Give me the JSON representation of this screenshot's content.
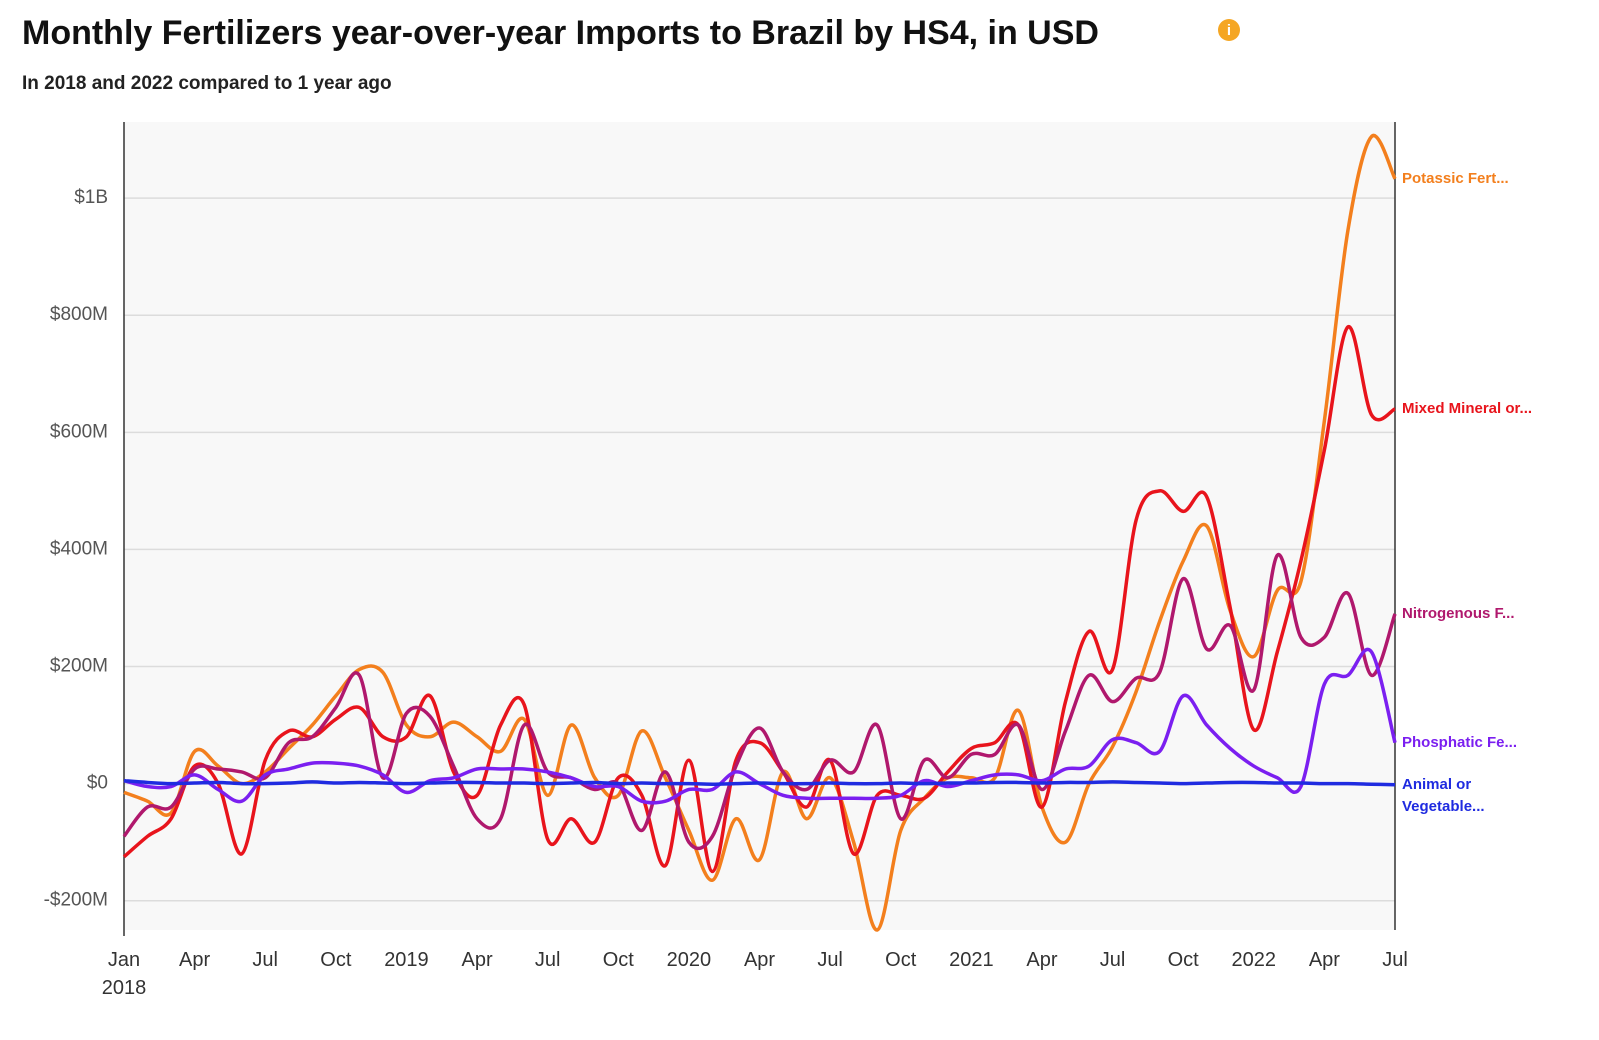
{
  "chart_data": {
    "type": "line",
    "title": "Monthly Fertilizers year-over-year Imports to Brazil by HS4, in USD",
    "subtitle": "In 2018 and 2022 compared to 1 year ago",
    "categories": [
      "Jan 2018",
      null,
      null,
      "Apr",
      null,
      null,
      "Jul",
      null,
      null,
      "Oct",
      null,
      null,
      "2019",
      null,
      null,
      "Apr",
      null,
      null,
      "Jul",
      null,
      null,
      "Oct",
      null,
      null,
      "2020",
      null,
      null,
      "Apr",
      null,
      null,
      "Jul",
      null,
      null,
      "Oct",
      null,
      null,
      "2021",
      null,
      null,
      "Apr",
      null,
      null,
      "Jul",
      null,
      null,
      "Oct",
      null,
      null,
      "2022",
      null,
      null,
      "Apr",
      null,
      null,
      "Jul"
    ],
    "ylim": [
      -250000000.0,
      1130000000.0
    ],
    "yticks": [
      {
        "value": -200000000.0,
        "label": "-$200M"
      },
      {
        "value": 0,
        "label": "$0"
      },
      {
        "value": 200000000.0,
        "label": "$200M"
      },
      {
        "value": 400000000.0,
        "label": "$400M"
      },
      {
        "value": 600000000.0,
        "label": "$600M"
      },
      {
        "value": 800000000.0,
        "label": "$800M"
      },
      {
        "value": 1000000000.0,
        "label": "$1B"
      }
    ],
    "grid": true,
    "series": [
      {
        "name": "Potassic Fert...",
        "color": "#f37f1d",
        "values": [
          -15000000.0,
          -30000000.0,
          -50000000.0,
          55000000.0,
          30000000.0,
          0,
          20000000.0,
          60000000.0,
          100000000.0,
          150000000.0,
          195000000.0,
          190000000.0,
          100000000.0,
          80000000.0,
          105000000.0,
          80000000.0,
          55000000.0,
          110000000.0,
          -20000000.0,
          100000000.0,
          10000000.0,
          -20000000.0,
          90000000.0,
          10000000.0,
          -80000000.0,
          -165000000.0,
          -60000000.0,
          -130000000.0,
          20000000.0,
          -60000000.0,
          10000000.0,
          -100000000.0,
          -250000000.0,
          -80000000.0,
          -25000000.0,
          10000000.0,
          10000000.0,
          10000000.0,
          125000000.0,
          -40000000.0,
          -100000000.0,
          0,
          63000000.0,
          157000000.0,
          277000000.0,
          380000000.0,
          440000000.0,
          295000000.0,
          217000000.0,
          330000000.0,
          345000000.0,
          620000000.0,
          945000000.0,
          1105000000.0,
          1033000000.0
        ]
      },
      {
        "name": "Mixed Mineral or...",
        "color": "#e8141c",
        "values": [
          -125000000.0,
          -90000000.0,
          -60000000.0,
          30000000.0,
          0,
          -120000000.0,
          40000000.0,
          90000000.0,
          80000000.0,
          110000000.0,
          130000000.0,
          80000000.0,
          80000000.0,
          150000000.0,
          20000000.0,
          -20000000.0,
          100000000.0,
          135000000.0,
          -95000000.0,
          -60000000.0,
          -100000000.0,
          10000000.0,
          -20000000.0,
          -140000000.0,
          40000000.0,
          -150000000.0,
          40000000.0,
          70000000.0,
          20000000.0,
          -40000000.0,
          40000000.0,
          -120000000.0,
          -20000000.0,
          -20000000.0,
          -25000000.0,
          20000000.0,
          60000000.0,
          70000000.0,
          100000000.0,
          -40000000.0,
          140000000.0,
          260000000.0,
          195000000.0,
          450000000.0,
          500000000.0,
          465000000.0,
          490000000.0,
          300000000.0,
          92000000.0,
          225000000.0,
          380000000.0,
          570000000.0,
          780000000.0,
          630000000.0,
          640000000.0
        ]
      },
      {
        "name": "Nitrogenous F...",
        "color": "#b0186d",
        "values": [
          -90000000.0,
          -40000000.0,
          -40000000.0,
          25000000.0,
          25000000.0,
          20000000.0,
          10000000.0,
          70000000.0,
          80000000.0,
          130000000.0,
          185000000.0,
          10000000.0,
          120000000.0,
          115000000.0,
          30000000.0,
          -60000000.0,
          -60000000.0,
          100000000.0,
          20000000.0,
          10000000.0,
          -10000000.0,
          0,
          -80000000.0,
          20000000.0,
          -100000000.0,
          -90000000.0,
          30000000.0,
          95000000.0,
          20000000.0,
          -10000000.0,
          40000000.0,
          20000000.0,
          100000000.0,
          -60000000.0,
          40000000.0,
          10000000.0,
          50000000.0,
          50000000.0,
          100000000.0,
          -10000000.0,
          90000000.0,
          185000000.0,
          140000000.0,
          180000000.0,
          190000000.0,
          350000000.0,
          230000000.0,
          270000000.0,
          160000000.0,
          390000000.0,
          250000000.0,
          250000000.0,
          325000000.0,
          185000000.0,
          290000000.0
        ]
      },
      {
        "name": "Phosphatic Fe...",
        "color": "#7b1ff0",
        "values": [
          5000000.0,
          -5000000.0,
          -5000000.0,
          15000000.0,
          -10000000.0,
          -30000000.0,
          15000000.0,
          25000000.0,
          35000000.0,
          35000000.0,
          30000000.0,
          15000000.0,
          -15000000.0,
          5000000.0,
          10000000.0,
          25000000.0,
          25000000.0,
          25000000.0,
          20000000.0,
          10000000.0,
          -5000000.0,
          -5000000.0,
          -30000000.0,
          -30000000.0,
          -10000000.0,
          -10000000.0,
          20000000.0,
          0,
          -20000000.0,
          -25000000.0,
          -25000000.0,
          -25000000.0,
          -25000000.0,
          -20000000.0,
          5000000.0,
          -5000000.0,
          5000000.0,
          15000000.0,
          15000000.0,
          5000000.0,
          25000000.0,
          30000000.0,
          75000000.0,
          70000000.0,
          55000000.0,
          150000000.0,
          100000000.0,
          60000000.0,
          30000000.0,
          10000000.0,
          -5000000.0,
          170000000.0,
          185000000.0,
          225000000.0,
          70000000.0
        ]
      },
      {
        "name": "Animal or Vegetable...",
        "color": "#1f2be0",
        "values": [
          5000000.0,
          2000000.0,
          0,
          1000000.0,
          2000000.0,
          0,
          0,
          1000000.0,
          3000000.0,
          1000000.0,
          2000000.0,
          1000000.0,
          0,
          1000000.0,
          2000000.0,
          2000000.0,
          1000000.0,
          1000000.0,
          0,
          1000000.0,
          2000000.0,
          0,
          1000000.0,
          0,
          0,
          -1000000.0,
          0,
          1000000.0,
          0,
          0,
          1000000.0,
          0,
          0,
          1000000.0,
          0,
          1000000.0,
          1000000.0,
          2000000.0,
          2000000.0,
          1000000.0,
          2000000.0,
          2000000.0,
          3000000.0,
          2000000.0,
          1000000.0,
          0,
          1000000.0,
          2000000.0,
          2000000.0,
          1000000.0,
          1000000.0,
          0,
          0,
          -1000000.0,
          -2000000.0
        ]
      }
    ]
  }
}
